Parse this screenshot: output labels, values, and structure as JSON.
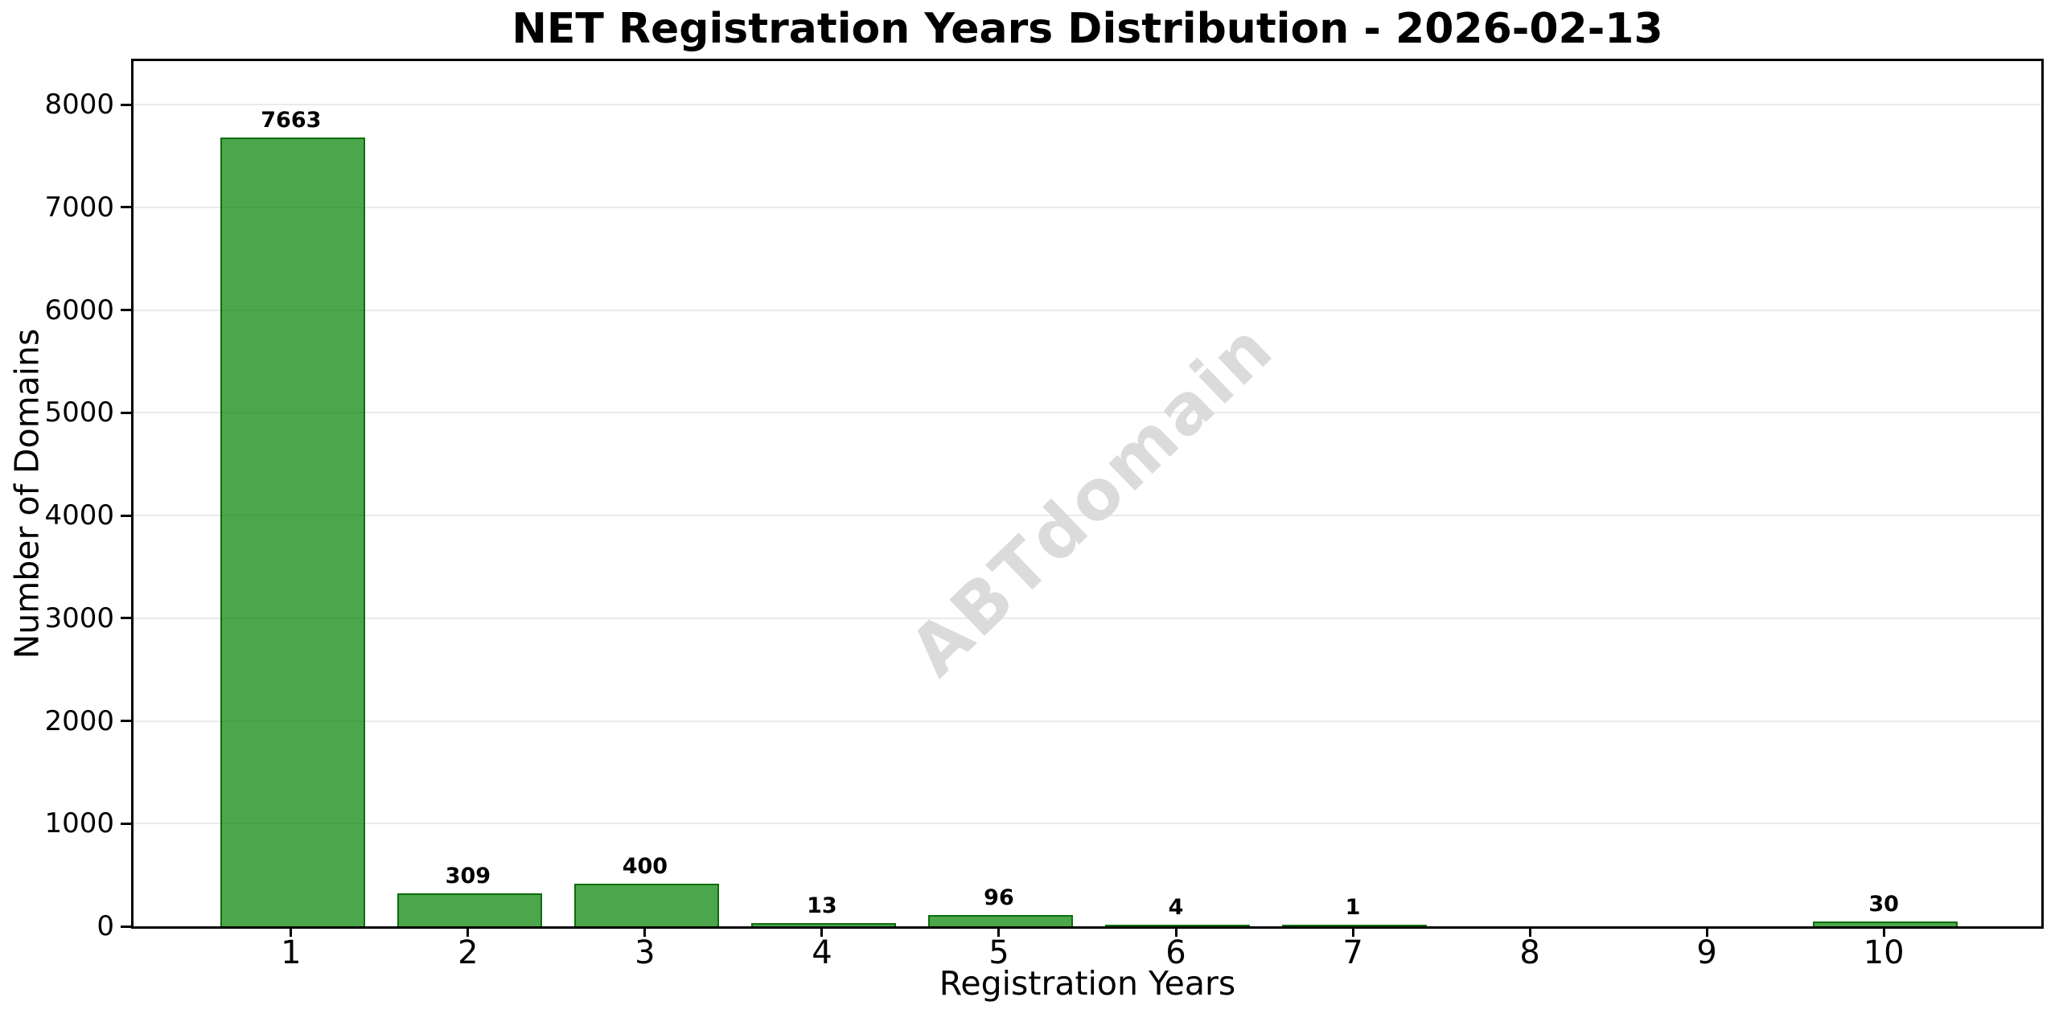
{
  "chart_data": {
    "type": "bar",
    "title": "NET Registration Years Distribution - 2026-02-13",
    "xlabel": "Registration Years",
    "ylabel": "Number of Domains",
    "watermark": "ABTdomain",
    "categories": [
      1,
      2,
      3,
      4,
      5,
      6,
      7,
      8,
      9,
      10
    ],
    "values": [
      7663,
      309,
      400,
      13,
      96,
      4,
      1,
      0,
      0,
      30
    ],
    "bar_labels": [
      "7663",
      "309",
      "400",
      "13",
      "96",
      "4",
      "1",
      "",
      "",
      "30"
    ],
    "yticks": [
      0,
      1000,
      2000,
      3000,
      4000,
      5000,
      6000,
      7000,
      8000
    ],
    "ylim": [
      0,
      8425
    ],
    "xlim": [
      0.11,
      10.89
    ],
    "bar_width_units": 0.8,
    "grid": true,
    "legend": null,
    "colors": {
      "bar_fill": "rgba(0,128,0,0.7)",
      "bar_edge": "rgba(0,100,0,0.85)",
      "grid": "#eaeaea",
      "text": "#000000",
      "watermark": "#dbdbdb",
      "background": "#ffffff"
    }
  }
}
